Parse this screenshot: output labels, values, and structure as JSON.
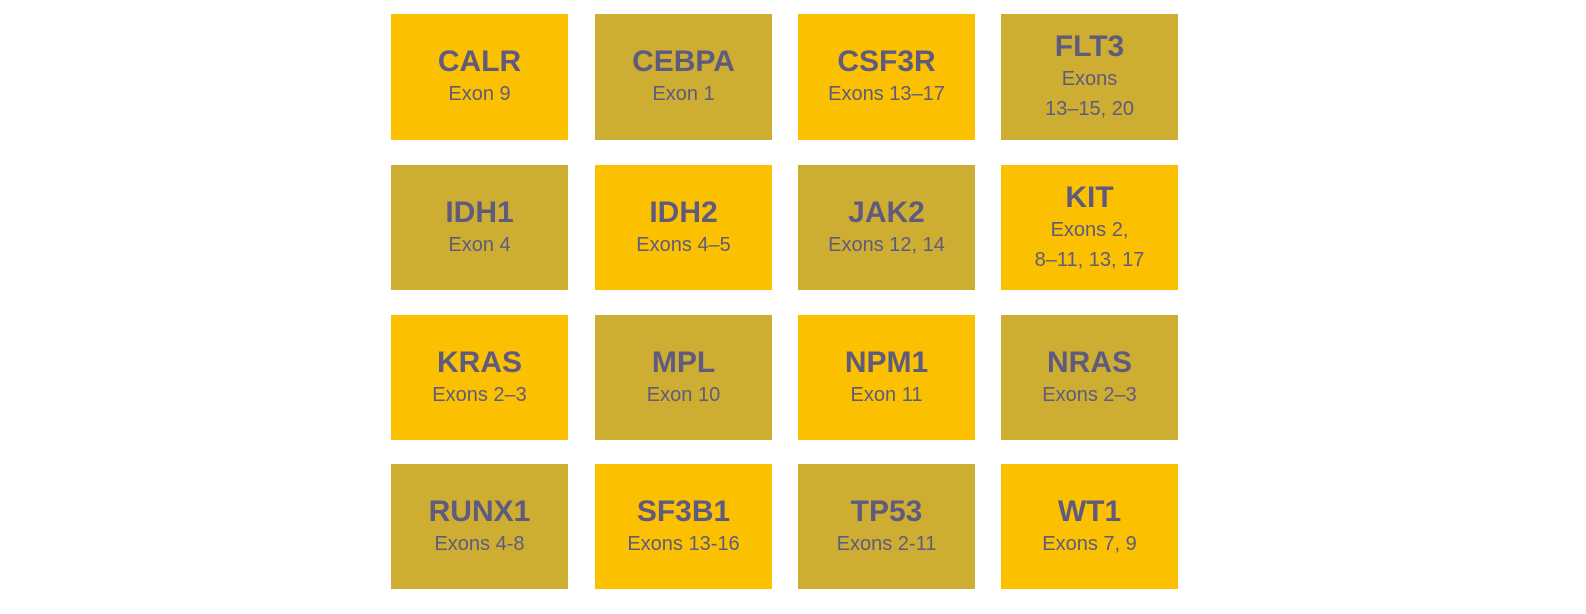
{
  "tiles": [
    {
      "gene": "CALR",
      "exons": [
        "Exon 9"
      ],
      "color": "#fbc000"
    },
    {
      "gene": "CEBPA",
      "exons": [
        "Exon 1"
      ],
      "color": "#cdae33"
    },
    {
      "gene": "CSF3R",
      "exons": [
        "Exons 13–17"
      ],
      "color": "#fbc000"
    },
    {
      "gene": "FLT3",
      "exons": [
        "Exons",
        "13–15, 20"
      ],
      "color": "#cdae33"
    },
    {
      "gene": "IDH1",
      "exons": [
        "Exon 4"
      ],
      "color": "#cdae33"
    },
    {
      "gene": "IDH2",
      "exons": [
        "Exons 4–5"
      ],
      "color": "#fbc000"
    },
    {
      "gene": "JAK2",
      "exons": [
        "Exons 12, 14"
      ],
      "color": "#cdae33"
    },
    {
      "gene": "KIT",
      "exons": [
        "Exons 2,",
        "8–11, 13, 17"
      ],
      "color": "#fbc000"
    },
    {
      "gene": "KRAS",
      "exons": [
        "Exons 2–3"
      ],
      "color": "#fbc000"
    },
    {
      "gene": "MPL",
      "exons": [
        "Exon 10"
      ],
      "color": "#cdae33"
    },
    {
      "gene": "NPM1",
      "exons": [
        "Exon 11"
      ],
      "color": "#fbc000"
    },
    {
      "gene": "NRAS",
      "exons": [
        "Exons 2–3"
      ],
      "color": "#cdae33"
    },
    {
      "gene": "RUNX1",
      "exons": [
        "Exons 4-8"
      ],
      "color": "#cdae33"
    },
    {
      "gene": "SF3B1",
      "exons": [
        "Exons 13-16"
      ],
      "color": "#fbc000"
    },
    {
      "gene": "TP53",
      "exons": [
        "Exons 2-11"
      ],
      "color": "#cdae33"
    },
    {
      "gene": "WT1",
      "exons": [
        "Exons 7, 9"
      ],
      "color": "#fbc000"
    }
  ]
}
